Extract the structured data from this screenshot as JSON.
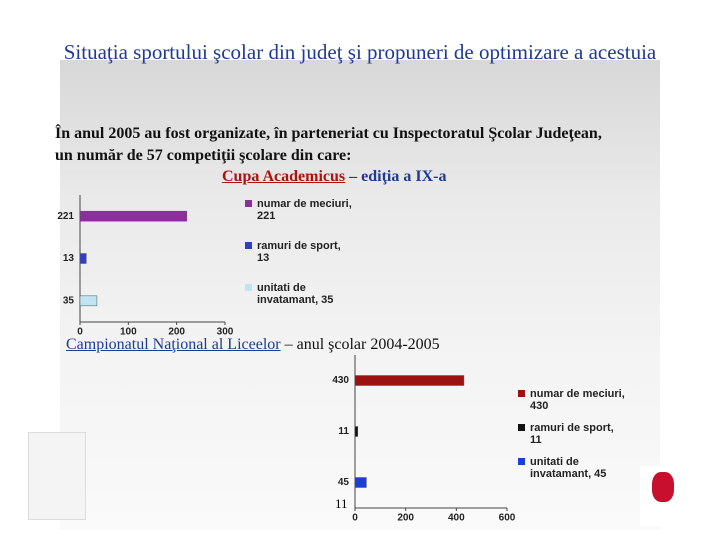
{
  "title": "Situaţia sportului şcolar din judeţ şi propuneri de optimizare a acestuia",
  "intro": [
    "În anul 2005 au fost organizate, în parteneriat cu Inspectoratul Şcolar Judeţean,",
    "un număr de 57 competiţii şcolare din care:"
  ],
  "page_number": "11",
  "chart_data": [
    {
      "type": "bar",
      "orientation": "horizontal",
      "title": [
        "Cupa Academicus",
        " – ediţia a IX-a"
      ],
      "categories": [
        "221",
        "13",
        "35"
      ],
      "values": [
        221,
        13,
        35
      ],
      "colors": [
        "#8a2f9c",
        "#2f3fc8",
        "#bfe4f2"
      ],
      "legend": [
        "numar de meciuri, 221",
        "ramuri de sport, 13",
        "unitati de invatamant, 35"
      ],
      "xlim": [
        0,
        300
      ],
      "xticks": [
        0,
        100,
        200,
        300
      ]
    },
    {
      "type": "bar",
      "orientation": "horizontal",
      "title": [
        "Campionatul Naţional al Liceelor",
        " – anul şcolar 2004-2005"
      ],
      "categories": [
        "430",
        "11",
        "45"
      ],
      "values": [
        430,
        11,
        45
      ],
      "colors": [
        "#9c1212",
        "#111111",
        "#1a3fd6"
      ],
      "legend": [
        "numar de meciuri, 430",
        "ramuri de sport, 11",
        "unitati de invatamant, 45"
      ],
      "xlim": [
        0,
        600
      ],
      "xticks": [
        0,
        200,
        400,
        600
      ]
    }
  ]
}
